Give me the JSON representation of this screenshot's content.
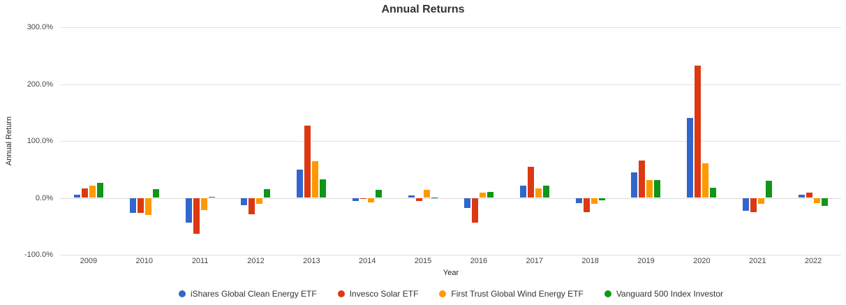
{
  "title": "Annual Returns",
  "chart_data": {
    "type": "bar",
    "title": "Annual Returns",
    "xlabel": "Year",
    "ylabel": "Annual Return",
    "ylim": [
      -100,
      300
    ],
    "yticks": [
      300,
      200,
      100,
      0,
      -100
    ],
    "ytick_labels": [
      "300.0%",
      "200.0%",
      "100.0%",
      "0.0%",
      "-100.0%"
    ],
    "grid": true,
    "legend_position": "bottom",
    "categories": [
      "2009",
      "2010",
      "2011",
      "2012",
      "2013",
      "2014",
      "2015",
      "2016",
      "2017",
      "2018",
      "2019",
      "2020",
      "2021",
      "2022"
    ],
    "series": [
      {
        "name": "iShares Global Clean Energy ETF",
        "color": "#3366CC",
        "values": [
          6.1,
          -26.0,
          -44.0,
          -13.0,
          49.5,
          -5.0,
          4.5,
          -17.2,
          21.0,
          -8.6,
          44.2,
          140.7,
          -23.0,
          5.8
        ]
      },
      {
        "name": "Invesco Solar ETF",
        "color": "#DC3912",
        "values": [
          16.0,
          -26.0,
          -63.5,
          -29.0,
          127.5,
          -0.5,
          -6.0,
          -43.0,
          54.0,
          -25.0,
          66.0,
          233.0,
          -25.0,
          9.8
        ]
      },
      {
        "name": "First Trust Global Wind Energy ETF",
        "color": "#FF9900",
        "values": [
          22.0,
          -30.0,
          -21.5,
          -11.0,
          65.0,
          -7.5,
          14.0,
          8.6,
          16.0,
          -11.0,
          30.8,
          61.0,
          -10.7,
          -9.8
        ]
      },
      {
        "name": "Vanguard 500 Index Investor",
        "color": "#109618",
        "values": [
          26.9,
          14.8,
          2.0,
          15.8,
          32.2,
          14.5,
          1.2,
          11.0,
          21.8,
          -4.5,
          31.3,
          18.0,
          29.5,
          -14.7
        ]
      }
    ]
  }
}
